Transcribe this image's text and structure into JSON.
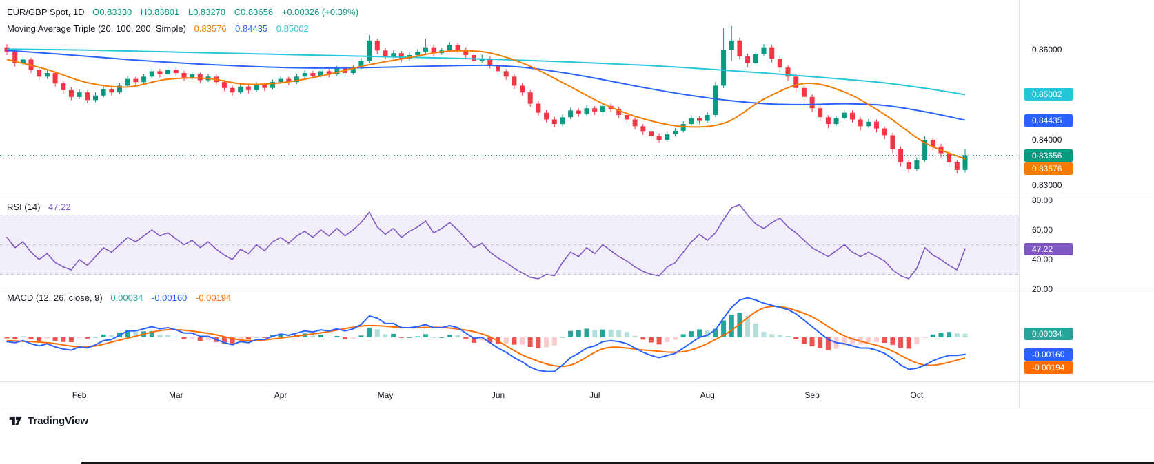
{
  "header": {
    "symbol_title": "EUR/GBP Spot, 1D",
    "ohlc": [
      "O0.83330",
      "H0.83801",
      "L0.83270",
      "C0.83656"
    ],
    "change": "+0.00326 (+0.39%)",
    "ma_title": "Moving Average Triple (20, 100, 200, Simple)",
    "ma_values": [
      "0.83576",
      "0.84435",
      "0.85002"
    ]
  },
  "rsi_legend": {
    "title": "RSI (14)",
    "value": "47.22"
  },
  "macd_legend": {
    "title": "MACD (12, 26, close, 9)",
    "values": [
      "0.00034",
      "-0.00160",
      "-0.00194"
    ]
  },
  "footer": {
    "logo_text": "TradingView"
  },
  "colors": {
    "candle_up": "#089981",
    "candle_down": "#f23645",
    "ma20": "#f57c00",
    "ma100": "#2962ff",
    "ma200": "#26c6da",
    "rsi": "#7e57c2",
    "rsi_band": "rgba(126,87,194,0.10)",
    "rsi_levels": "#9598a1",
    "macd_line": "#2962ff",
    "macd_signal": "#ff6d00",
    "hist_up": "#26a69a",
    "hist_up_fade": "#b2dfdb",
    "hist_down": "#ef5350",
    "hist_down_fade": "#fccbcd",
    "text": "#131722"
  },
  "price_axis": {
    "labels": [
      {
        "text": "0.86000",
        "value": 0.86
      },
      {
        "text": "0.84000",
        "value": 0.84
      },
      {
        "text": "0.83000",
        "value": 0.83
      }
    ],
    "badges": [
      {
        "text": "0.85002",
        "value": 0.85002,
        "color_key": "ma200"
      },
      {
        "text": "0.84435",
        "value": 0.84435,
        "color_key": "ma100"
      },
      {
        "text": "0.83656",
        "value": 0.83656,
        "color_key": "candle_up"
      },
      {
        "text": "0.83576",
        "value": 0.83576,
        "color_key": "ma20"
      }
    ]
  },
  "rsi_axis": {
    "labels": [
      {
        "text": "80.00",
        "value": 80
      },
      {
        "text": "60.00",
        "value": 60
      },
      {
        "text": "40.00",
        "value": 40
      },
      {
        "text": "20.00",
        "value": 20
      }
    ],
    "badge": {
      "text": "47.22",
      "value": 47.22,
      "color_key": "rsi"
    }
  },
  "macd_axis": {
    "badges": [
      {
        "text": "0.00034",
        "value": 0.00034,
        "color_key": "hist_up"
      },
      {
        "text": "-0.00160",
        "value": -0.0016,
        "color_key": "macd_line"
      },
      {
        "text": "-0.00194",
        "value": -0.00194,
        "color_key": "macd_signal"
      }
    ]
  },
  "chart_data": {
    "type": "candlestick",
    "symbol": "EUR/GBP Spot",
    "timeframe": "1D",
    "last_bar": {
      "open": 0.8333,
      "high": 0.83801,
      "low": 0.8327,
      "close": 0.83656,
      "change": "+0.00326",
      "change_pct": "+0.39%"
    },
    "ylim": [
      0.8285,
      0.8665
    ],
    "months": [
      {
        "label": "Feb",
        "idx": 9
      },
      {
        "label": "Mar",
        "idx": 21
      },
      {
        "label": "Apr",
        "idx": 34
      },
      {
        "label": "May",
        "idx": 47
      },
      {
        "label": "Jun",
        "idx": 61
      },
      {
        "label": "Jul",
        "idx": 73
      },
      {
        "label": "Aug",
        "idx": 87
      },
      {
        "label": "Sep",
        "idx": 100
      },
      {
        "label": "Oct",
        "idx": 113
      }
    ],
    "candles": [
      [
        0.8605,
        0.8612,
        0.8588,
        0.8595
      ],
      [
        0.8595,
        0.8601,
        0.8562,
        0.857
      ],
      [
        0.857,
        0.8585,
        0.8564,
        0.8578
      ],
      [
        0.8578,
        0.8582,
        0.8548,
        0.8555
      ],
      [
        0.8555,
        0.8561,
        0.8532,
        0.854
      ],
      [
        0.854,
        0.8555,
        0.8535,
        0.8548
      ],
      [
        0.8548,
        0.8552,
        0.8518,
        0.8525
      ],
      [
        0.8525,
        0.8531,
        0.8502,
        0.851
      ],
      [
        0.851,
        0.8516,
        0.8488,
        0.8495
      ],
      [
        0.8495,
        0.8512,
        0.849,
        0.8505
      ],
      [
        0.8505,
        0.8509,
        0.8481,
        0.8488
      ],
      [
        0.8488,
        0.8505,
        0.8483,
        0.8498
      ],
      [
        0.8498,
        0.8518,
        0.8494,
        0.8512
      ],
      [
        0.8512,
        0.8517,
        0.8498,
        0.8505
      ],
      [
        0.8505,
        0.8526,
        0.8501,
        0.852
      ],
      [
        0.852,
        0.8541,
        0.8516,
        0.8535
      ],
      [
        0.8535,
        0.854,
        0.8521,
        0.8528
      ],
      [
        0.8528,
        0.8546,
        0.8524,
        0.854
      ],
      [
        0.854,
        0.8558,
        0.8536,
        0.8552
      ],
      [
        0.8552,
        0.8557,
        0.8538,
        0.8545
      ],
      [
        0.8545,
        0.8561,
        0.8541,
        0.8555
      ],
      [
        0.8555,
        0.856,
        0.8541,
        0.8548
      ],
      [
        0.8548,
        0.8553,
        0.8531,
        0.8538
      ],
      [
        0.8538,
        0.8551,
        0.8534,
        0.8545
      ],
      [
        0.8545,
        0.8549,
        0.8525,
        0.8532
      ],
      [
        0.8532,
        0.8546,
        0.8528,
        0.854
      ],
      [
        0.854,
        0.8545,
        0.8521,
        0.8528
      ],
      [
        0.8528,
        0.8533,
        0.8508,
        0.8515
      ],
      [
        0.8515,
        0.852,
        0.8498,
        0.8505
      ],
      [
        0.8505,
        0.8524,
        0.8501,
        0.8518
      ],
      [
        0.8518,
        0.8522,
        0.8503,
        0.851
      ],
      [
        0.851,
        0.8528,
        0.8506,
        0.8522
      ],
      [
        0.8522,
        0.8527,
        0.8508,
        0.8515
      ],
      [
        0.8515,
        0.8534,
        0.8511,
        0.8528
      ],
      [
        0.8528,
        0.8541,
        0.8524,
        0.8535
      ],
      [
        0.8535,
        0.854,
        0.8521,
        0.8528
      ],
      [
        0.8528,
        0.8546,
        0.8524,
        0.854
      ],
      [
        0.854,
        0.8554,
        0.8536,
        0.8548
      ],
      [
        0.8548,
        0.8553,
        0.8535,
        0.8542
      ],
      [
        0.8542,
        0.8558,
        0.8538,
        0.8552
      ],
      [
        0.8552,
        0.8557,
        0.8538,
        0.8545
      ],
      [
        0.8545,
        0.8564,
        0.8541,
        0.8558
      ],
      [
        0.8558,
        0.8563,
        0.8541,
        0.8548
      ],
      [
        0.8548,
        0.8566,
        0.8544,
        0.856
      ],
      [
        0.856,
        0.8581,
        0.8556,
        0.8575
      ],
      [
        0.8575,
        0.8632,
        0.857,
        0.862
      ],
      [
        0.862,
        0.8625,
        0.859,
        0.8598
      ],
      [
        0.8598,
        0.8604,
        0.8578,
        0.8585
      ],
      [
        0.8585,
        0.8598,
        0.8581,
        0.8592
      ],
      [
        0.8592,
        0.8597,
        0.8573,
        0.858
      ],
      [
        0.858,
        0.8594,
        0.8576,
        0.8588
      ],
      [
        0.8588,
        0.8601,
        0.8584,
        0.8595
      ],
      [
        0.8595,
        0.8625,
        0.8591,
        0.8605
      ],
      [
        0.8605,
        0.861,
        0.8585,
        0.8592
      ],
      [
        0.8592,
        0.8604,
        0.8588,
        0.8598
      ],
      [
        0.8598,
        0.8616,
        0.8594,
        0.861
      ],
      [
        0.861,
        0.8615,
        0.8593,
        0.86
      ],
      [
        0.86,
        0.8605,
        0.8581,
        0.8588
      ],
      [
        0.8588,
        0.8593,
        0.8568,
        0.8575
      ],
      [
        0.8575,
        0.8589,
        0.8571,
        0.858
      ],
      [
        0.858,
        0.8585,
        0.8558,
        0.8565
      ],
      [
        0.8565,
        0.857,
        0.8545,
        0.8552
      ],
      [
        0.8552,
        0.8557,
        0.8533,
        0.854
      ],
      [
        0.854,
        0.8545,
        0.8513,
        0.852
      ],
      [
        0.852,
        0.8526,
        0.8498,
        0.8505
      ],
      [
        0.8505,
        0.851,
        0.8473,
        0.848
      ],
      [
        0.848,
        0.8486,
        0.8453,
        0.846
      ],
      [
        0.846,
        0.8466,
        0.8438,
        0.8445
      ],
      [
        0.8445,
        0.8451,
        0.8428,
        0.8435
      ],
      [
        0.8435,
        0.8456,
        0.8431,
        0.845
      ],
      [
        0.845,
        0.8471,
        0.8446,
        0.8465
      ],
      [
        0.8465,
        0.847,
        0.8451,
        0.8458
      ],
      [
        0.8458,
        0.8476,
        0.8454,
        0.847
      ],
      [
        0.847,
        0.8475,
        0.8455,
        0.8462
      ],
      [
        0.8462,
        0.8481,
        0.8458,
        0.8475
      ],
      [
        0.8475,
        0.848,
        0.8461,
        0.8468
      ],
      [
        0.8468,
        0.8473,
        0.8448,
        0.8455
      ],
      [
        0.8455,
        0.846,
        0.8438,
        0.8445
      ],
      [
        0.8445,
        0.845,
        0.8423,
        0.843
      ],
      [
        0.843,
        0.8435,
        0.8411,
        0.8418
      ],
      [
        0.8418,
        0.8423,
        0.8401,
        0.8408
      ],
      [
        0.8408,
        0.8414,
        0.8393,
        0.84
      ],
      [
        0.84,
        0.8418,
        0.8396,
        0.8412
      ],
      [
        0.8412,
        0.8426,
        0.8408,
        0.842
      ],
      [
        0.842,
        0.8441,
        0.8416,
        0.8435
      ],
      [
        0.8435,
        0.8454,
        0.8431,
        0.8448
      ],
      [
        0.8448,
        0.8453,
        0.8435,
        0.8442
      ],
      [
        0.8442,
        0.8461,
        0.8438,
        0.8455
      ],
      [
        0.8455,
        0.8528,
        0.845,
        0.852
      ],
      [
        0.852,
        0.8648,
        0.8515,
        0.86
      ],
      [
        0.86,
        0.8652,
        0.8575,
        0.862
      ],
      [
        0.862,
        0.8626,
        0.8578,
        0.8585
      ],
      [
        0.8585,
        0.8591,
        0.8561,
        0.857
      ],
      [
        0.857,
        0.8596,
        0.8566,
        0.859
      ],
      [
        0.859,
        0.8612,
        0.8586,
        0.8605
      ],
      [
        0.8605,
        0.861,
        0.8571,
        0.858
      ],
      [
        0.858,
        0.8585,
        0.8551,
        0.856
      ],
      [
        0.856,
        0.8565,
        0.8531,
        0.854
      ],
      [
        0.854,
        0.8545,
        0.8506,
        0.8515
      ],
      [
        0.8515,
        0.8521,
        0.8486,
        0.8495
      ],
      [
        0.8495,
        0.8501,
        0.8461,
        0.847
      ],
      [
        0.847,
        0.8476,
        0.8441,
        0.845
      ],
      [
        0.845,
        0.8455,
        0.8426,
        0.8435
      ],
      [
        0.8435,
        0.8453,
        0.8431,
        0.8448
      ],
      [
        0.8448,
        0.8466,
        0.8444,
        0.846
      ],
      [
        0.846,
        0.8465,
        0.8438,
        0.8445
      ],
      [
        0.8445,
        0.845,
        0.8421,
        0.843
      ],
      [
        0.843,
        0.8446,
        0.8426,
        0.844
      ],
      [
        0.844,
        0.8445,
        0.8416,
        0.8425
      ],
      [
        0.8425,
        0.843,
        0.8401,
        0.841
      ],
      [
        0.841,
        0.8415,
        0.8371,
        0.838
      ],
      [
        0.838,
        0.8385,
        0.8341,
        0.835
      ],
      [
        0.835,
        0.8355,
        0.8326,
        0.8335
      ],
      [
        0.8335,
        0.8361,
        0.8331,
        0.8355
      ],
      [
        0.8355,
        0.8408,
        0.8351,
        0.84
      ],
      [
        0.84,
        0.8405,
        0.8376,
        0.8385
      ],
      [
        0.8385,
        0.8391,
        0.8361,
        0.837
      ],
      [
        0.837,
        0.8375,
        0.8341,
        0.835
      ],
      [
        0.835,
        0.8355,
        0.8325,
        0.8333
      ],
      [
        0.8333,
        0.83801,
        0.8327,
        0.83656
      ]
    ],
    "ma20_samples": [
      0.8578,
      0.8556,
      0.8527,
      0.8517,
      0.8534,
      0.8536,
      0.8523,
      0.8528,
      0.8544,
      0.8565,
      0.8581,
      0.8596,
      0.8594,
      0.8567,
      0.8523,
      0.8477,
      0.8445,
      0.8429,
      0.8438,
      0.8492,
      0.8525,
      0.8505,
      0.8455,
      0.8393,
      0.83576
    ],
    "ma100_samples": [
      0.8598,
      0.8592,
      0.8585,
      0.8578,
      0.8572,
      0.8567,
      0.8563,
      0.856,
      0.8559,
      0.856,
      0.8562,
      0.8564,
      0.8565,
      0.856,
      0.8548,
      0.8532,
      0.8515,
      0.85,
      0.8488,
      0.848,
      0.8478,
      0.848,
      0.8476,
      0.8462,
      0.84435
    ],
    "ma200_samples": [
      0.8601,
      0.86,
      0.8599,
      0.8597,
      0.8595,
      0.8593,
      0.8591,
      0.8589,
      0.8587,
      0.8585,
      0.8583,
      0.8581,
      0.8579,
      0.8576,
      0.8573,
      0.8569,
      0.8565,
      0.856,
      0.8554,
      0.8548,
      0.8541,
      0.8534,
      0.8526,
      0.8514,
      0.85002
    ],
    "rsi": {
      "period": 14,
      "last": 47.22,
      "band": [
        30,
        70
      ],
      "levels": [
        30,
        50,
        70
      ],
      "axis_ticks": [
        80,
        60,
        40,
        20
      ],
      "values": [
        55,
        48,
        52,
        45,
        40,
        44,
        38,
        35,
        33,
        40,
        36,
        42,
        48,
        45,
        50,
        55,
        52,
        56,
        60,
        56,
        58,
        54,
        50,
        53,
        48,
        52,
        47,
        43,
        40,
        47,
        44,
        50,
        46,
        52,
        55,
        51,
        56,
        59,
        55,
        60,
        56,
        61,
        56,
        60,
        65,
        72,
        62,
        57,
        61,
        55,
        59,
        62,
        66,
        58,
        61,
        65,
        60,
        54,
        48,
        51,
        45,
        41,
        38,
        34,
        31,
        28,
        27,
        30,
        29,
        38,
        45,
        42,
        48,
        44,
        50,
        46,
        42,
        39,
        35,
        32,
        30,
        29,
        35,
        38,
        45,
        52,
        57,
        53,
        58,
        67,
        75,
        77,
        70,
        64,
        61,
        65,
        68,
        62,
        58,
        53,
        48,
        45,
        42,
        46,
        50,
        45,
        42,
        45,
        42,
        39,
        33,
        29,
        27,
        34,
        48,
        43,
        40,
        36,
        33,
        47.22
      ]
    },
    "macd": {
      "params": "12, 26, close, 9",
      "last_histogram": 0.00034,
      "last_macd": -0.0016,
      "last_signal": -0.00194,
      "macd_values": [
        -0.0004,
        -0.0005,
        -0.0003,
        -0.0006,
        -0.0008,
        -0.0006,
        -0.0009,
        -0.0011,
        -0.0012,
        -0.0009,
        -0.001,
        -0.0007,
        -0.0003,
        -0.0002,
        0.0002,
        0.0006,
        0.0006,
        0.0008,
        0.001,
        0.0008,
        0.0009,
        0.0007,
        0.0004,
        0.0004,
        0.0001,
        0.0001,
        -0.0002,
        -0.0005,
        -0.0007,
        -0.0004,
        -0.0005,
        -0.0002,
        -0.0002,
        0.0001,
        0.0003,
        0.0002,
        0.0004,
        0.0006,
        0.0005,
        0.0007,
        0.0006,
        0.0008,
        0.0006,
        0.0008,
        0.0012,
        0.002,
        0.0018,
        0.0013,
        0.0013,
        0.0009,
        0.0009,
        0.001,
        0.0012,
        0.0009,
        0.0009,
        0.0011,
        0.0009,
        0.0004,
        -0.0001,
        0.0,
        -0.0005,
        -0.001,
        -0.0014,
        -0.0019,
        -0.0023,
        -0.0028,
        -0.0031,
        -0.0032,
        -0.0032,
        -0.0026,
        -0.0019,
        -0.0015,
        -0.001,
        -0.0008,
        -0.0004,
        -0.0003,
        -0.0004,
        -0.0006,
        -0.001,
        -0.0014,
        -0.0017,
        -0.0019,
        -0.0017,
        -0.0015,
        -0.001,
        -0.0005,
        0.0,
        0.0002,
        0.0007,
        0.0018,
        0.0028,
        0.0035,
        0.0037,
        0.0035,
        0.0032,
        0.003,
        0.0028,
        0.0026,
        0.0022,
        0.0016,
        0.001,
        0.0004,
        -0.0002,
        -0.0005,
        -0.0006,
        -0.0008,
        -0.001,
        -0.001,
        -0.0012,
        -0.0015,
        -0.002,
        -0.0026,
        -0.003,
        -0.0029,
        -0.0026,
        -0.0022,
        -0.0019,
        -0.0017,
        -0.0017,
        -0.0016
      ],
      "signal_samples": [
        -0.0003,
        -0.0005,
        -0.0009,
        -0.0001,
        0.0007,
        0.0004,
        -0.0003,
        0.0,
        0.0005,
        0.0011,
        0.0009,
        0.0009,
        0.0002,
        -0.0018,
        -0.0027,
        -0.001,
        -0.0012,
        -0.0013,
        0.0003,
        0.0028,
        0.0022,
        0.0001,
        -0.001,
        -0.0026,
        -0.00194
      ]
    }
  }
}
